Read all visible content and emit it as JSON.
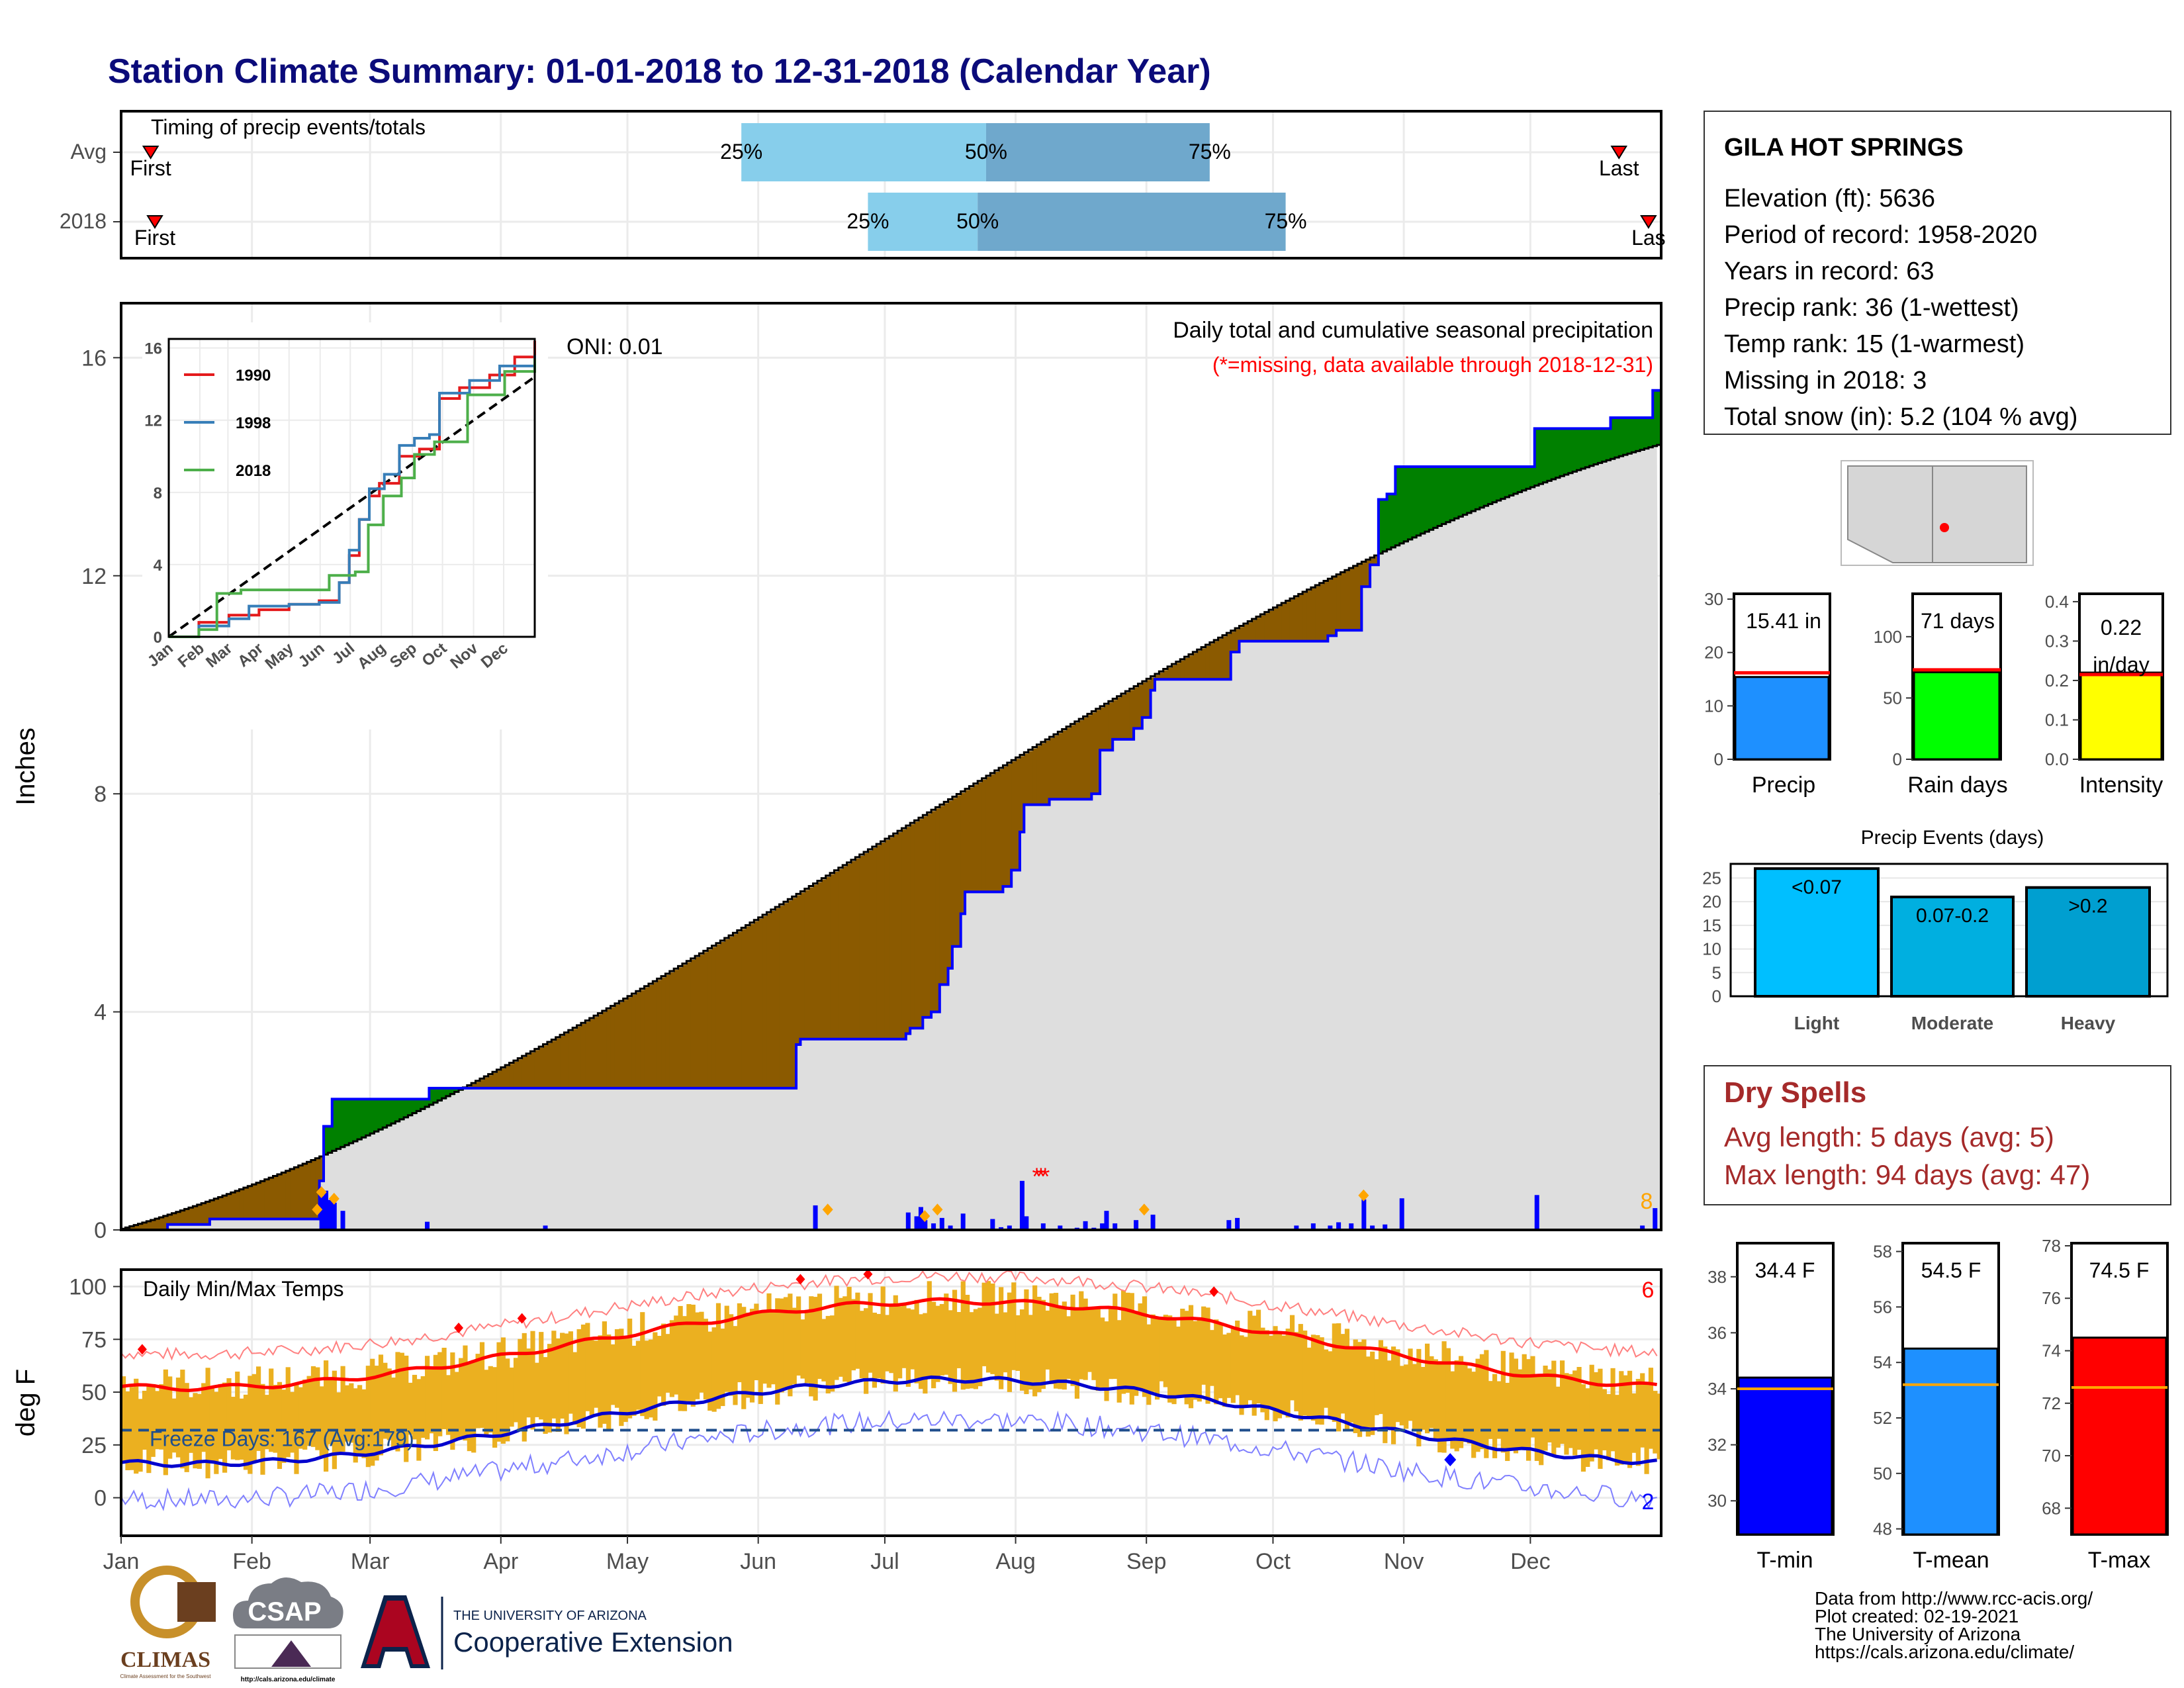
{
  "page": {
    "title": "Station Climate Summary: 01-01-2018 to 12-31-2018 (Calendar Year)",
    "title_color": "#0b0b7a",
    "credits": [
      "Data from http://www.rcc-acis.org/",
      "Plot created: 02-19-2021",
      "The University of Arizona",
      "https://cals.arizona.edu/climate/"
    ],
    "logos": {
      "climas": "CLIMAS",
      "climas_caption": "Climate Assessment for the Southwest",
      "csap": "CSAP",
      "csap_url": "http://cals.arizona.edu/climate",
      "ua_small": "THE UNIVERSITY OF ARIZONA",
      "ua_big": "Cooperative Extension"
    }
  },
  "station": {
    "name": "GILA HOT SPRINGS",
    "lines": [
      "Elevation (ft): 5636",
      "Period of record: 1958-2020",
      "Years in record: 63",
      "Precip rank: 36 (1-wettest)",
      "Temp rank: 15 (1-warmest)",
      "Missing in 2018: 3",
      "Total snow (in): 5.2 (104 % avg)"
    ]
  },
  "dry_spells": {
    "title": "Dry Spells",
    "lines": [
      "Avg length: 5 days (avg: 5)",
      "Max length: 94 days (avg: 47)"
    ],
    "color": "#a52a2a"
  },
  "colors": {
    "above": "#008000",
    "below": "#8b5a00",
    "clim_fill": "#dedede",
    "obs_line": "#0000ff",
    "temp_bar": "#ebb020",
    "tmax_avg": "#ff0000",
    "tmin_avg": "#0000cd",
    "q_light": "#87ceeb",
    "q_dark": "#6fa8cc",
    "precip_bar": "#1e90ff",
    "raindays_bar": "#00ff00",
    "intensity_bar": "#ffff00",
    "tmin_bar": "#0000ff",
    "tmean_bar": "#1e90ff",
    "tmax_bar": "#ff0000",
    "ev_light": "#00bfff",
    "ev_mod": "#00afe0",
    "ev_heavy": "#009fd0"
  },
  "chart_data": [
    {
      "id": "timing",
      "type": "bar",
      "panel_label": "Timing of precip events/totals",
      "rows": [
        {
          "name": "Avg",
          "first_doy": 7,
          "last_doy": 355,
          "q25": 147,
          "q50": 205,
          "q75": 258,
          "first_label": "First",
          "last_label": "Last"
        },
        {
          "name": "2018",
          "first_doy": 8,
          "last_doy": 362,
          "q25": 177,
          "q50": 203,
          "q75": 276,
          "first_label": "First",
          "last_label": "Las"
        }
      ],
      "quantile_labels": [
        "25%",
        "50%",
        "75%"
      ]
    },
    {
      "id": "precip",
      "type": "area",
      "title": "Daily total and cumulative seasonal precipitation",
      "subtitle": "(*=missing, data available through 2018-12-31)",
      "ylabel": "Inches",
      "ylim": [
        0,
        17
      ],
      "yticks": [
        0,
        4,
        8,
        12,
        16
      ],
      "oni": "ONI: 0.01",
      "max_marker_count": "8",
      "x_months": [
        "Jan",
        "Feb",
        "Mar",
        "Apr",
        "May",
        "Jun",
        "Jul",
        "Aug",
        "Sep",
        "Oct",
        "Nov",
        "Dec"
      ],
      "climatology_endpoints": [
        [
          0,
          0
        ],
        [
          365,
          14.4
        ]
      ],
      "observed_cumulative": [
        [
          0,
          0
        ],
        [
          11,
          0.1
        ],
        [
          21,
          0.2
        ],
        [
          46,
          0.2
        ],
        [
          47,
          0.9
        ],
        [
          48,
          1.9
        ],
        [
          50,
          2.4
        ],
        [
          72,
          2.4
        ],
        [
          73,
          2.6
        ],
        [
          110,
          2.6
        ],
        [
          160,
          3.4
        ],
        [
          161,
          3.5
        ],
        [
          176,
          3.5
        ],
        [
          186,
          3.6
        ],
        [
          187,
          3.7
        ],
        [
          189,
          3.7
        ],
        [
          190,
          3.9
        ],
        [
          192,
          4.0
        ],
        [
          194,
          4.5
        ],
        [
          196,
          4.8
        ],
        [
          197,
          5.2
        ],
        [
          199,
          5.8
        ],
        [
          200,
          6.2
        ],
        [
          209,
          6.3
        ],
        [
          211,
          6.6
        ],
        [
          213,
          7.3
        ],
        [
          214,
          7.8
        ],
        [
          220,
          7.9
        ],
        [
          226,
          7.9
        ],
        [
          230,
          8.0
        ],
        [
          232,
          8.8
        ],
        [
          235,
          9.0
        ],
        [
          240,
          9.2
        ],
        [
          242,
          9.4
        ],
        [
          244,
          9.9
        ],
        [
          245,
          10.1
        ],
        [
          253,
          10.1
        ],
        [
          263,
          10.6
        ],
        [
          265,
          10.8
        ],
        [
          286,
          10.9
        ],
        [
          288,
          11.0
        ],
        [
          294,
          11.8
        ],
        [
          296,
          12.2
        ],
        [
          298,
          13.4
        ],
        [
          300,
          13.5
        ],
        [
          302,
          14.0
        ],
        [
          334,
          14.0
        ],
        [
          335,
          14.7
        ],
        [
          352,
          14.7
        ],
        [
          353,
          14.9
        ],
        [
          362,
          14.9
        ],
        [
          363,
          15.4
        ]
      ],
      "daily": [
        [
          47,
          0.62
        ],
        [
          48,
          0.72
        ],
        [
          49,
          0.55
        ],
        [
          50,
          0.5
        ],
        [
          52,
          0.35
        ],
        [
          72,
          0.15
        ],
        [
          100,
          0.08
        ],
        [
          164,
          0.45
        ],
        [
          186,
          0.32
        ],
        [
          188,
          0.25
        ],
        [
          189,
          0.42
        ],
        [
          190,
          0.18
        ],
        [
          192,
          0.12
        ],
        [
          194,
          0.22
        ],
        [
          196,
          0.08
        ],
        [
          199,
          0.3
        ],
        [
          206,
          0.2
        ],
        [
          208,
          0.05
        ],
        [
          210,
          0.08
        ],
        [
          213,
          0.9
        ],
        [
          214,
          0.25
        ],
        [
          218,
          0.12
        ],
        [
          222,
          0.08
        ],
        [
          226,
          0.04
        ],
        [
          228,
          0.16
        ],
        [
          230,
          0.04
        ],
        [
          232,
          0.12
        ],
        [
          233,
          0.35
        ],
        [
          235,
          0.12
        ],
        [
          240,
          0.18
        ],
        [
          244,
          0.28
        ],
        [
          262,
          0.18
        ],
        [
          264,
          0.22
        ],
        [
          278,
          0.08
        ],
        [
          282,
          0.12
        ],
        [
          286,
          0.08
        ],
        [
          288,
          0.14
        ],
        [
          291,
          0.12
        ],
        [
          294,
          0.56
        ],
        [
          296,
          0.08
        ],
        [
          299,
          0.1
        ],
        [
          303,
          0.58
        ],
        [
          335,
          0.64
        ],
        [
          360,
          0.08
        ],
        [
          363,
          0.4
        ]
      ],
      "event_markers": [
        46,
        47,
        50,
        167,
        190,
        193,
        242,
        294
      ],
      "missing_days": [
        217,
        218,
        219
      ]
    },
    {
      "id": "inset",
      "type": "line",
      "xlabels": [
        "Jan",
        "Feb",
        "Mar",
        "Apr",
        "May",
        "Jun",
        "Jul",
        "Aug",
        "Sep",
        "Oct",
        "Nov",
        "Dec"
      ],
      "yticks": [
        0,
        4,
        8,
        12,
        16
      ],
      "ylim": [
        0,
        16.5
      ],
      "series": [
        {
          "name": "1990",
          "color": "#e41a1c",
          "points": [
            [
              0,
              0
            ],
            [
              30,
              0.8
            ],
            [
              60,
              1.2
            ],
            [
              90,
              1.5
            ],
            [
              120,
              1.8
            ],
            [
              150,
              2.0
            ],
            [
              170,
              3.0
            ],
            [
              180,
              4.5
            ],
            [
              190,
              6.5
            ],
            [
              200,
              7.8
            ],
            [
              210,
              8.5
            ],
            [
              230,
              10.0
            ],
            [
              250,
              10.4
            ],
            [
              270,
              13.2
            ],
            [
              290,
              13.8
            ],
            [
              320,
              14.5
            ],
            [
              345,
              15.5
            ],
            [
              365,
              16.4
            ]
          ]
        },
        {
          "name": "1998",
          "color": "#377eb8",
          "points": [
            [
              0,
              0
            ],
            [
              30,
              0.6
            ],
            [
              60,
              1.0
            ],
            [
              80,
              1.7
            ],
            [
              120,
              1.8
            ],
            [
              150,
              1.9
            ],
            [
              170,
              3.0
            ],
            [
              180,
              4.8
            ],
            [
              190,
              6.5
            ],
            [
              200,
              8.2
            ],
            [
              215,
              9.0
            ],
            [
              230,
              10.6
            ],
            [
              245,
              11.0
            ],
            [
              260,
              11.2
            ],
            [
              270,
              13.5
            ],
            [
              300,
              14.2
            ],
            [
              330,
              15.0
            ],
            [
              365,
              15.6
            ]
          ]
        },
        {
          "name": "2018",
          "color": "#4daf4a",
          "points": [
            [
              0,
              0
            ],
            [
              30,
              0.4
            ],
            [
              48,
              2.4
            ],
            [
              72,
              2.6
            ],
            [
              110,
              2.6
            ],
            [
              160,
              3.4
            ],
            [
              186,
              3.6
            ],
            [
              199,
              6.2
            ],
            [
              214,
              7.8
            ],
            [
              232,
              8.8
            ],
            [
              245,
              10.1
            ],
            [
              265,
              10.8
            ],
            [
              298,
              13.4
            ],
            [
              335,
              14.7
            ],
            [
              365,
              15.4
            ]
          ]
        }
      ],
      "clim_end": 14.4
    },
    {
      "id": "temps",
      "type": "bar",
      "panel_label": "Daily Min/Max Temps",
      "ylabel": "deg F",
      "ylim": [
        -18,
        108
      ],
      "yticks": [
        0,
        25,
        50,
        75,
        100
      ],
      "freeze_label": "Freeze Days: 167 (Avg:179)",
      "freeze_line": 32,
      "record_high_count": "6",
      "record_low_count": "2",
      "x_months": [
        "Jan",
        "Feb",
        "Mar",
        "Apr",
        "May",
        "Jun",
        "Jul",
        "Aug",
        "Sep",
        "Oct",
        "Nov",
        "Dec"
      ],
      "tmax_avg_annual_mean": 72.5,
      "tmax_avg_amp": 20.5,
      "tmin_avg_annual_mean": 36,
      "tmin_avg_amp": 20,
      "record_high_days": [
        5,
        80,
        95,
        161,
        177,
        259
      ],
      "record_low_days": [
        315
      ]
    },
    {
      "id": "precip_summary",
      "type": "bar",
      "panels": [
        {
          "name": "Precip",
          "value": 15.41,
          "label": "15.41 in",
          "avg": 16.2,
          "ymax": 31,
          "ticks": [
            0,
            10,
            20,
            30
          ]
        },
        {
          "name": "Rain days",
          "value": 71,
          "label": "71 days",
          "avg": 73,
          "ymax": 135,
          "ticks": [
            0,
            50,
            100
          ]
        },
        {
          "name": "Intensity",
          "value": 0.22,
          "label": "0.22 in/day",
          "avg": 0.215,
          "ymax": 0.42,
          "ticks": [
            0.0,
            0.1,
            0.2,
            0.3,
            0.4
          ]
        }
      ]
    },
    {
      "id": "precip_events",
      "type": "bar",
      "title": "Precip Events (days)",
      "categories": [
        "Light",
        "Moderate",
        "Heavy"
      ],
      "values": [
        27,
        21,
        23
      ],
      "bar_labels": [
        "<0.07",
        "0.07-0.2",
        ">0.2"
      ],
      "yticks": [
        0,
        5,
        10,
        15,
        20,
        25
      ],
      "ylim": [
        0,
        28
      ]
    },
    {
      "id": "temp_summary",
      "type": "bar",
      "panels": [
        {
          "name": "T-min",
          "value": 34.4,
          "label": "34.4 F",
          "avg": 34.0,
          "ymin": 28.8,
          "ymax": 39.2,
          "ticks": [
            30,
            32,
            34,
            36,
            38
          ]
        },
        {
          "name": "T-mean",
          "value": 54.5,
          "label": "54.5 F",
          "avg": 53.2,
          "ymin": 47.8,
          "ymax": 58.3,
          "ticks": [
            48,
            50,
            52,
            54,
            56,
            58
          ]
        },
        {
          "name": "T-max",
          "value": 74.5,
          "label": "74.5 F",
          "avg": 72.6,
          "ymin": 67.0,
          "ymax": 78.1,
          "ticks": [
            68,
            70,
            72,
            74,
            76,
            78
          ]
        }
      ]
    }
  ]
}
